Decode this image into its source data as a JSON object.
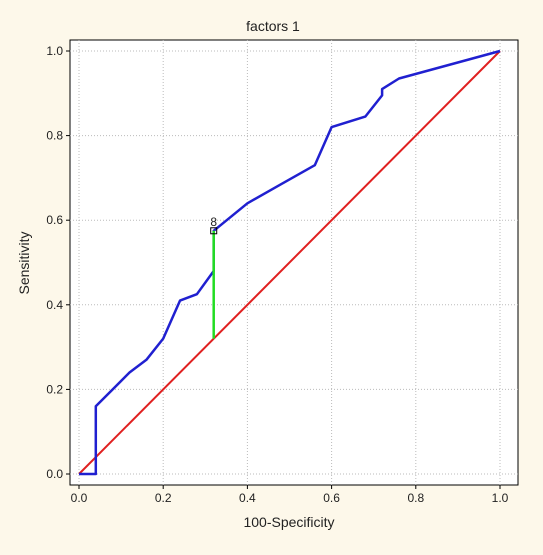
{
  "chart_data": {
    "type": "line",
    "title": "factors 1",
    "xlabel": "100-Specificity",
    "ylabel": "Sensitivity",
    "xlim": [
      0.0,
      1.0
    ],
    "ylim": [
      0.0,
      1.0
    ],
    "x_ticks": [
      "0.0",
      "0.2",
      "0.4",
      "0.6",
      "0.8",
      "1.0"
    ],
    "y_ticks": [
      "0.0",
      "0.2",
      "0.4",
      "0.6",
      "0.8",
      "1.0"
    ],
    "grid": true,
    "series": [
      {
        "color": "#2020d0",
        "points": [
          [
            0.0,
            0.0
          ],
          [
            0.04,
            0.0
          ],
          [
            0.04,
            0.16
          ],
          [
            0.08,
            0.2
          ],
          [
            0.12,
            0.24
          ],
          [
            0.16,
            0.27
          ],
          [
            0.2,
            0.32
          ],
          [
            0.24,
            0.41
          ],
          [
            0.28,
            0.425
          ],
          [
            0.32,
            0.48
          ],
          [
            0.32,
            0.575
          ],
          [
            0.4,
            0.64
          ],
          [
            0.48,
            0.685
          ],
          [
            0.56,
            0.73
          ],
          [
            0.6,
            0.82
          ],
          [
            0.68,
            0.845
          ],
          [
            0.72,
            0.895
          ],
          [
            0.72,
            0.91
          ],
          [
            0.76,
            0.935
          ],
          [
            1.0,
            1.0
          ]
        ]
      },
      {
        "color": "#e02020",
        "points": [
          [
            0.0,
            0.0
          ],
          [
            1.0,
            1.0
          ]
        ]
      },
      {
        "color": "#22dd22",
        "points": [
          [
            0.32,
            0.32
          ],
          [
            0.32,
            0.575
          ]
        ]
      }
    ],
    "annotations": [
      {
        "text": "8",
        "x": 0.32,
        "y": 0.575
      }
    ]
  }
}
